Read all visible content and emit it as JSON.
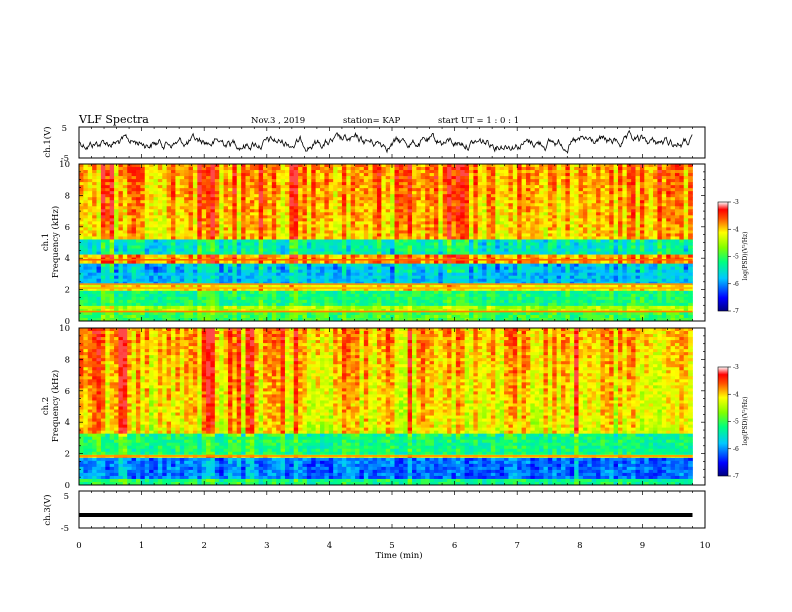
{
  "chart_data": {
    "type": "heatmap",
    "header": {
      "title": "VLF Spectra",
      "date": "Nov.3 , 2019",
      "station": "station= KAP",
      "start": "start UT = 1 : 0 : 1"
    },
    "x_axis": {
      "label": "Time (min)",
      "range": [
        0,
        10
      ],
      "ticks": [
        "0",
        "1",
        "2",
        "3",
        "4",
        "5",
        "6",
        "7",
        "8",
        "9",
        "10"
      ]
    },
    "panels": [
      {
        "type": "line",
        "ylabel": "ch.1(V)",
        "ylim": [
          -5,
          5
        ],
        "yticks": [
          "5",
          "-5"
        ]
      },
      {
        "type": "spectrogram",
        "ylabel_channel": "ch.1",
        "ylabel": "Frequency (kHz)",
        "ylim": [
          0,
          10
        ],
        "yticks": [
          "0",
          "2",
          "4",
          "6",
          "8",
          "10"
        ],
        "colorbar": {
          "label": "log(PSD)(V²/Hz)",
          "ticks": [
            "-3",
            "-4",
            "-5",
            "-6",
            "-7"
          ],
          "range": [
            -7,
            -3
          ]
        }
      },
      {
        "type": "spectrogram",
        "ylabel_channel": "ch.2",
        "ylabel": "Frequency (kHz)",
        "ylim": [
          0,
          10
        ],
        "yticks": [
          "0",
          "2",
          "4",
          "6",
          "8",
          "10"
        ],
        "colorbar": {
          "label": "log(PSD)(V²/Hz)",
          "ticks": [
            "-3",
            "-4",
            "-5",
            "-6",
            "-7"
          ],
          "range": [
            -7,
            -3
          ]
        }
      },
      {
        "type": "line",
        "ylabel": "ch.3(V)",
        "ylim": [
          -5,
          5
        ],
        "yticks": [
          "5",
          "-5"
        ],
        "constant_value": -1.5
      }
    ],
    "data_end_min": 9.8
  }
}
